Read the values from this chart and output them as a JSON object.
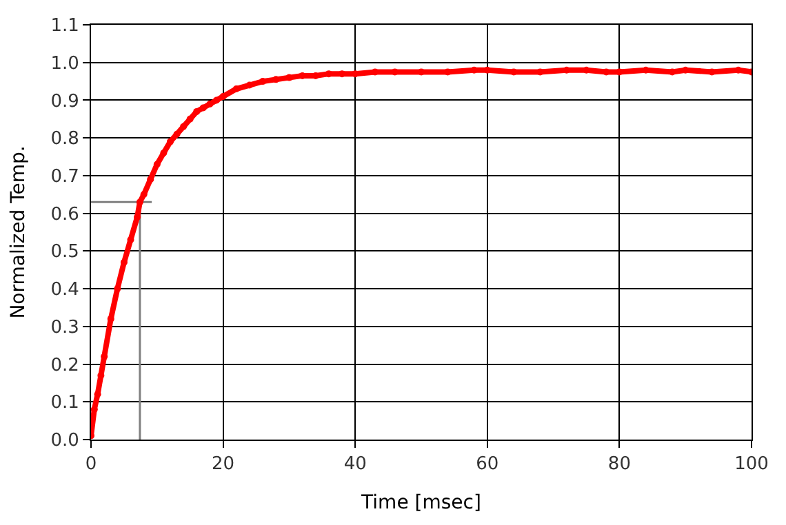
{
  "chart_data": {
    "type": "line",
    "xlabel": "Time [msec]",
    "ylabel": "Normalized Temp.",
    "x": [
      0,
      0.5,
      1,
      1.5,
      2,
      3,
      4,
      5,
      6,
      7,
      7.4,
      8,
      9,
      10,
      11,
      12,
      13,
      14,
      15,
      16,
      17,
      18,
      19,
      20,
      22,
      24,
      26,
      28,
      30,
      32,
      34,
      36,
      38,
      40,
      43,
      46,
      50,
      54,
      58,
      60,
      64,
      68,
      72,
      75,
      78,
      80,
      84,
      88,
      90,
      94,
      98,
      100
    ],
    "series": [
      {
        "color": "#ff0000",
        "values": [
          0.01,
          0.08,
          0.12,
          0.17,
          0.22,
          0.32,
          0.4,
          0.47,
          0.53,
          0.59,
          0.63,
          0.65,
          0.69,
          0.73,
          0.76,
          0.79,
          0.81,
          0.83,
          0.85,
          0.87,
          0.88,
          0.89,
          0.9,
          0.91,
          0.93,
          0.94,
          0.95,
          0.955,
          0.96,
          0.965,
          0.965,
          0.97,
          0.97,
          0.97,
          0.975,
          0.975,
          0.975,
          0.975,
          0.98,
          0.98,
          0.975,
          0.975,
          0.98,
          0.98,
          0.975,
          0.975,
          0.98,
          0.975,
          0.98,
          0.975,
          0.98,
          0.975
        ]
      },
      {
        "type": "line",
        "color": "#808080",
        "marker": "none",
        "x": [
          7.4,
          7.4
        ],
        "values": [
          0,
          0.63
        ]
      },
      {
        "type": "line",
        "color": "#808080",
        "marker": "none",
        "x": [
          0,
          9.2
        ],
        "values": [
          0.63,
          0.63
        ]
      }
    ],
    "xlim": [
      0,
      100
    ],
    "xticks": [
      0,
      20,
      40,
      60,
      80,
      100
    ],
    "ylim": [
      0,
      1.1
    ],
    "yticks": [
      {
        "value": 0,
        "label": "0.0"
      },
      0.1,
      0.2,
      0.3,
      0.4,
      0.5,
      0.6,
      0.7,
      0.8,
      0.9,
      {
        "value": 1,
        "label": "1.0"
      },
      1.1
    ],
    "grid": true,
    "marker": "circle",
    "line_style": "solid"
  }
}
